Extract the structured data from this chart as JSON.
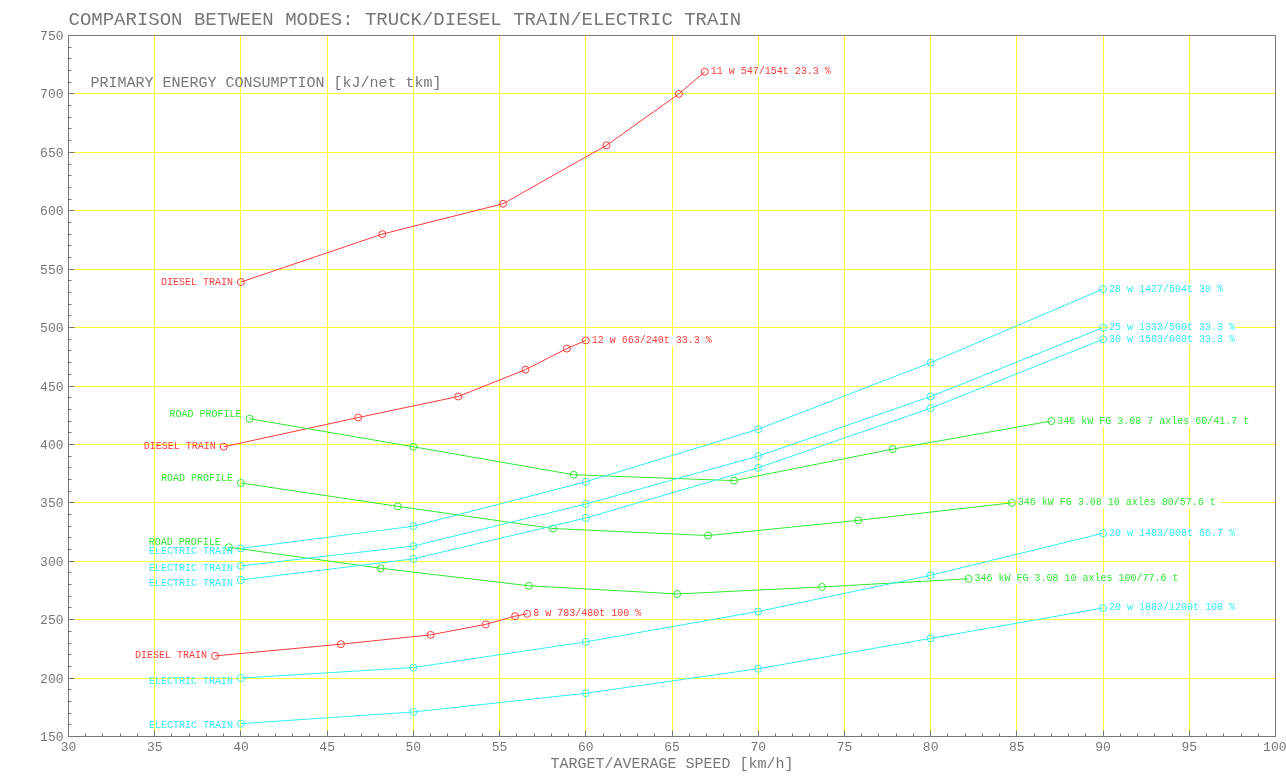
{
  "chart_data": {
    "type": "line",
    "title": "COMPARISON BETWEEN MODES: TRUCK/DIESEL TRAIN/ELECTRIC TRAIN",
    "subtitle": "PRIMARY ENERGY CONSUMPTION [kJ/net tkm]",
    "xlabel": "TARGET/AVERAGE SPEED [km/h]",
    "xlim": [
      30,
      100
    ],
    "xticks": [
      30,
      35,
      40,
      45,
      50,
      55,
      60,
      65,
      70,
      75,
      80,
      85,
      90,
      95,
      100
    ],
    "ylim": [
      150,
      750
    ],
    "yticks": [
      150,
      200,
      250,
      300,
      350,
      400,
      450,
      500,
      550,
      600,
      650,
      700,
      750
    ],
    "grid": true,
    "marker": "circle",
    "line_style": "solid",
    "series": [
      {
        "name": "11 w 547/154t 23.3 %",
        "color": "#ff3b3b",
        "x": [
          40,
          48.2,
          55.2,
          61.2,
          65.4,
          66.9
        ],
        "values": [
          539,
          580,
          606,
          656,
          700,
          719
        ]
      },
      {
        "name": "12 w 663/240t 33.3 %",
        "color": "#ff3b3b",
        "x": [
          39.0,
          46.8,
          52.6,
          56.5,
          58.9,
          60.0
        ],
        "values": [
          398,
          423,
          441,
          464,
          482,
          489
        ]
      },
      {
        "name": "8 w 783/480t 100 %",
        "color": "#ff3b3b",
        "x": [
          38.5,
          45.8,
          51.0,
          54.2,
          55.9,
          56.6
        ],
        "values": [
          219,
          229,
          237,
          246,
          253,
          255
        ]
      },
      {
        "name": "346 kW FG 3.08  7 axles 60/41.7 t",
        "color": "#33e833",
        "x": [
          40.5,
          50,
          59.3,
          68.6,
          77.8,
          87.0
        ],
        "values": [
          422,
          398,
          374,
          369,
          396,
          420
        ]
      },
      {
        "name": "346 kW FG 3.08  10 axles 80/57.6 t",
        "color": "#33e833",
        "x": [
          40,
          49.1,
          58.1,
          67.1,
          75.8,
          84.7
        ],
        "values": [
          367,
          347,
          328,
          322,
          335,
          350
        ]
      },
      {
        "name": "346 kW FG 3.08  10 axles 100/77.6 t",
        "color": "#33e833",
        "x": [
          39.3,
          48.1,
          56.7,
          65.3,
          73.7,
          82.2
        ],
        "values": [
          312,
          294,
          279,
          272,
          278,
          285
        ]
      },
      {
        "name": "28 w 1427/504t 30 %",
        "color": "#33f0f5",
        "x": [
          40,
          50,
          60,
          70,
          80,
          90
        ],
        "values": [
          311,
          330,
          368,
          413,
          470,
          533
        ]
      },
      {
        "name": "25 w 1333/500t 33.3 %",
        "color": "#33f0f5",
        "x": [
          40,
          50,
          60,
          70,
          80,
          90
        ],
        "values": [
          296,
          313,
          349,
          390,
          441,
          500
        ]
      },
      {
        "name": "30 w 1583/600t 33.3 %",
        "color": "#33f0f5",
        "x": [
          40,
          50,
          60,
          70,
          80,
          90
        ],
        "values": [
          284,
          302,
          337,
          380,
          431,
          490
        ]
      },
      {
        "name": "20 w 1483/800t 66.7 %",
        "color": "#33f0f5",
        "x": [
          40,
          50,
          60,
          70,
          80,
          90
        ],
        "values": [
          200,
          209,
          231,
          257,
          288,
          324
        ]
      },
      {
        "name": "20 w 1883/1200t 100 %",
        "color": "#33f0f5",
        "x": [
          40,
          50,
          60,
          70,
          80,
          90
        ],
        "values": [
          161,
          171,
          187,
          208,
          234,
          260
        ]
      }
    ],
    "annotations": [
      {
        "text": "DIESEL TRAIN",
        "x": 40,
        "y": 539
      },
      {
        "text": "DIESEL TRAIN",
        "x": 39.0,
        "y": 398
      },
      {
        "text": "DIESEL TRAIN",
        "x": 38.5,
        "y": 219
      },
      {
        "text": "ROAD PROFILE",
        "x": 40.5,
        "y": 426
      },
      {
        "text": "ROAD PROFILE",
        "x": 40,
        "y": 371
      },
      {
        "text": "ROAD PROFILE",
        "x": 39.3,
        "y": 316
      },
      {
        "text": "ELECTRIC TRAIN",
        "x": 40,
        "y": 308
      },
      {
        "text": "ELECTRIC TRAIN",
        "x": 40,
        "y": 294
      },
      {
        "text": "ELECTRIC TRAIN",
        "x": 40,
        "y": 281
      },
      {
        "text": "ELECTRIC TRAIN",
        "x": 40,
        "y": 197
      },
      {
        "text": "ELECTRIC TRAIN",
        "x": 40,
        "y": 159
      }
    ]
  }
}
